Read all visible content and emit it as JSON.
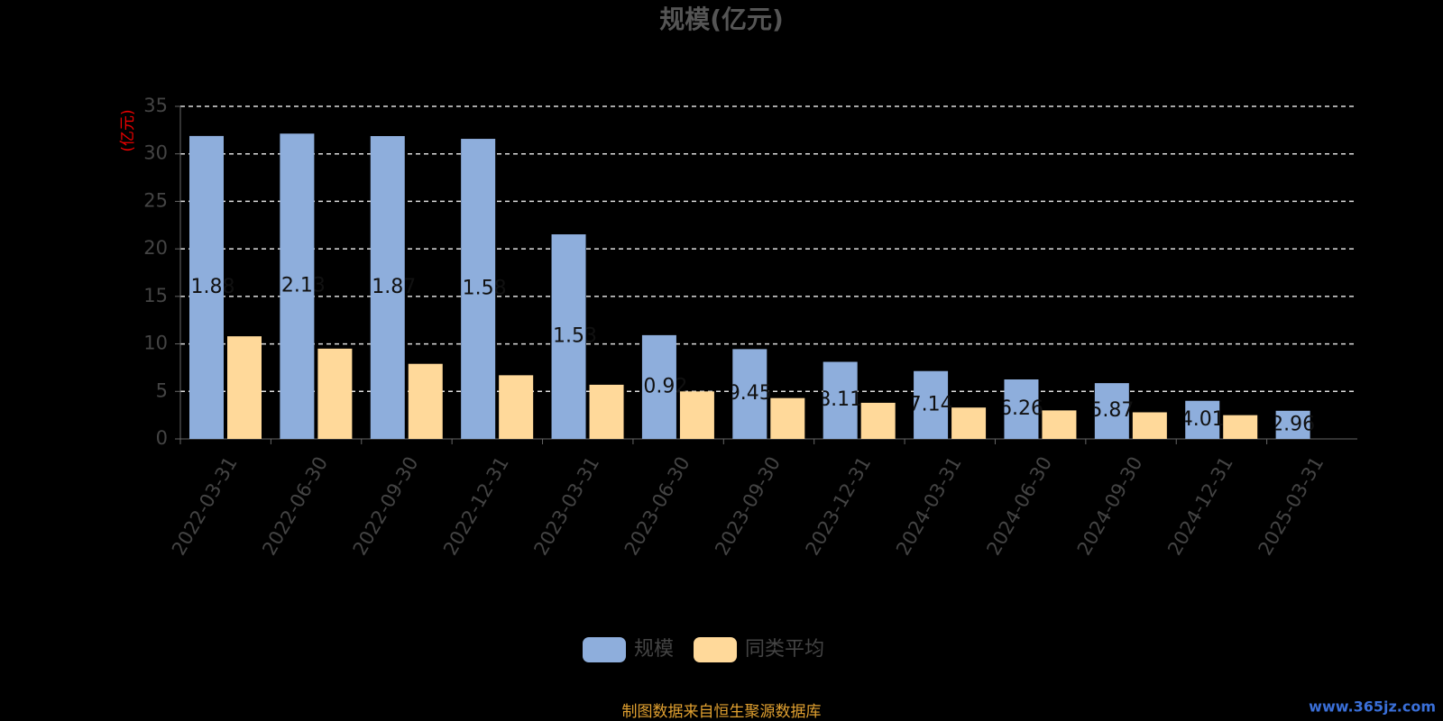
{
  "chart_data": {
    "type": "bar",
    "title": "规模(亿元)",
    "y_label": "(亿元)",
    "categories": [
      "2022-03-31",
      "2022-06-30",
      "2022-09-30",
      "2022-12-31",
      "2023-03-31",
      "2023-06-30",
      "2023-09-30",
      "2023-12-31",
      "2024-03-31",
      "2024-06-30",
      "2024-09-30",
      "2024-12-31",
      "2025-03-31"
    ],
    "series": [
      {
        "name": "规模",
        "color": "#8eaedc",
        "values": [
          31.88,
          32.13,
          31.87,
          31.58,
          21.53,
          10.92,
          9.45,
          8.11,
          7.14,
          6.26,
          5.87,
          4.01,
          2.96
        ]
      },
      {
        "name": "同类平均",
        "color": "#ffd99a",
        "values": [
          10.8,
          9.5,
          7.9,
          6.7,
          5.7,
          5.0,
          4.3,
          3.8,
          3.3,
          3.0,
          2.8,
          2.5,
          null
        ]
      }
    ],
    "ylim": [
      0,
      35
    ],
    "yticks": [
      0,
      5,
      10,
      15,
      20,
      25,
      30,
      35
    ],
    "grid": true,
    "legend": "bottom",
    "source": "制图数据来自恒生聚源数据库",
    "watermark": "www.365jz.com"
  }
}
